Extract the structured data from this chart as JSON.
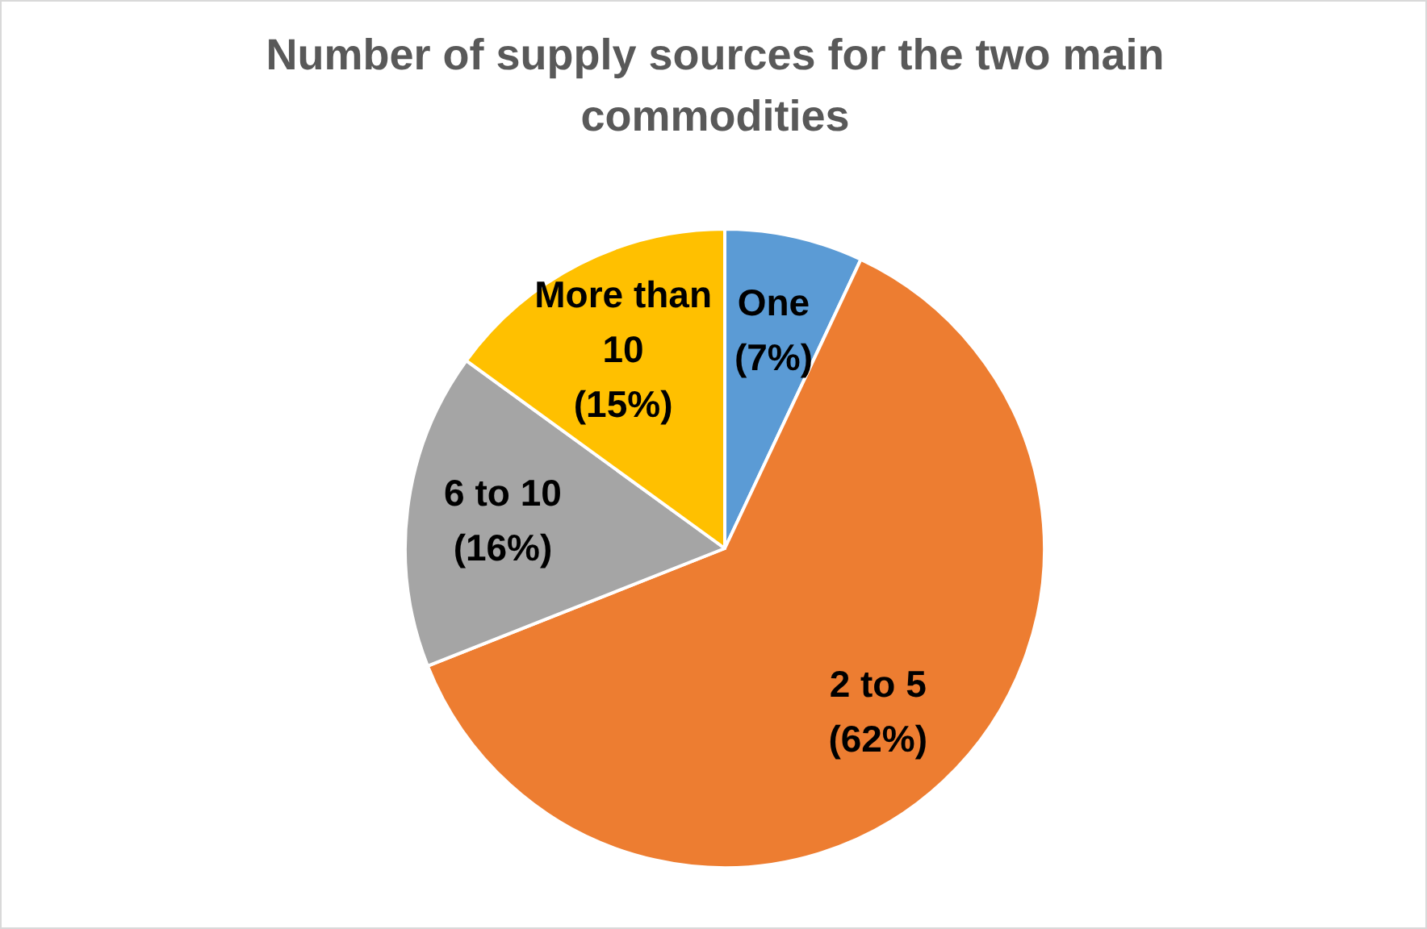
{
  "chart_data": {
    "type": "pie",
    "title": "Number of supply sources for the two main commodities",
    "categories": [
      "One",
      "2 to 5",
      "6 to 10",
      "More than 10"
    ],
    "values": [
      7,
      62,
      16,
      15
    ],
    "colors": [
      "#5b9bd5",
      "#ed7d31",
      "#a5a5a5",
      "#ffc000"
    ],
    "value_labels": [
      "(7%)",
      "(62%)",
      "(16%)",
      "(15%)"
    ],
    "data_labels": true,
    "legend": false
  }
}
